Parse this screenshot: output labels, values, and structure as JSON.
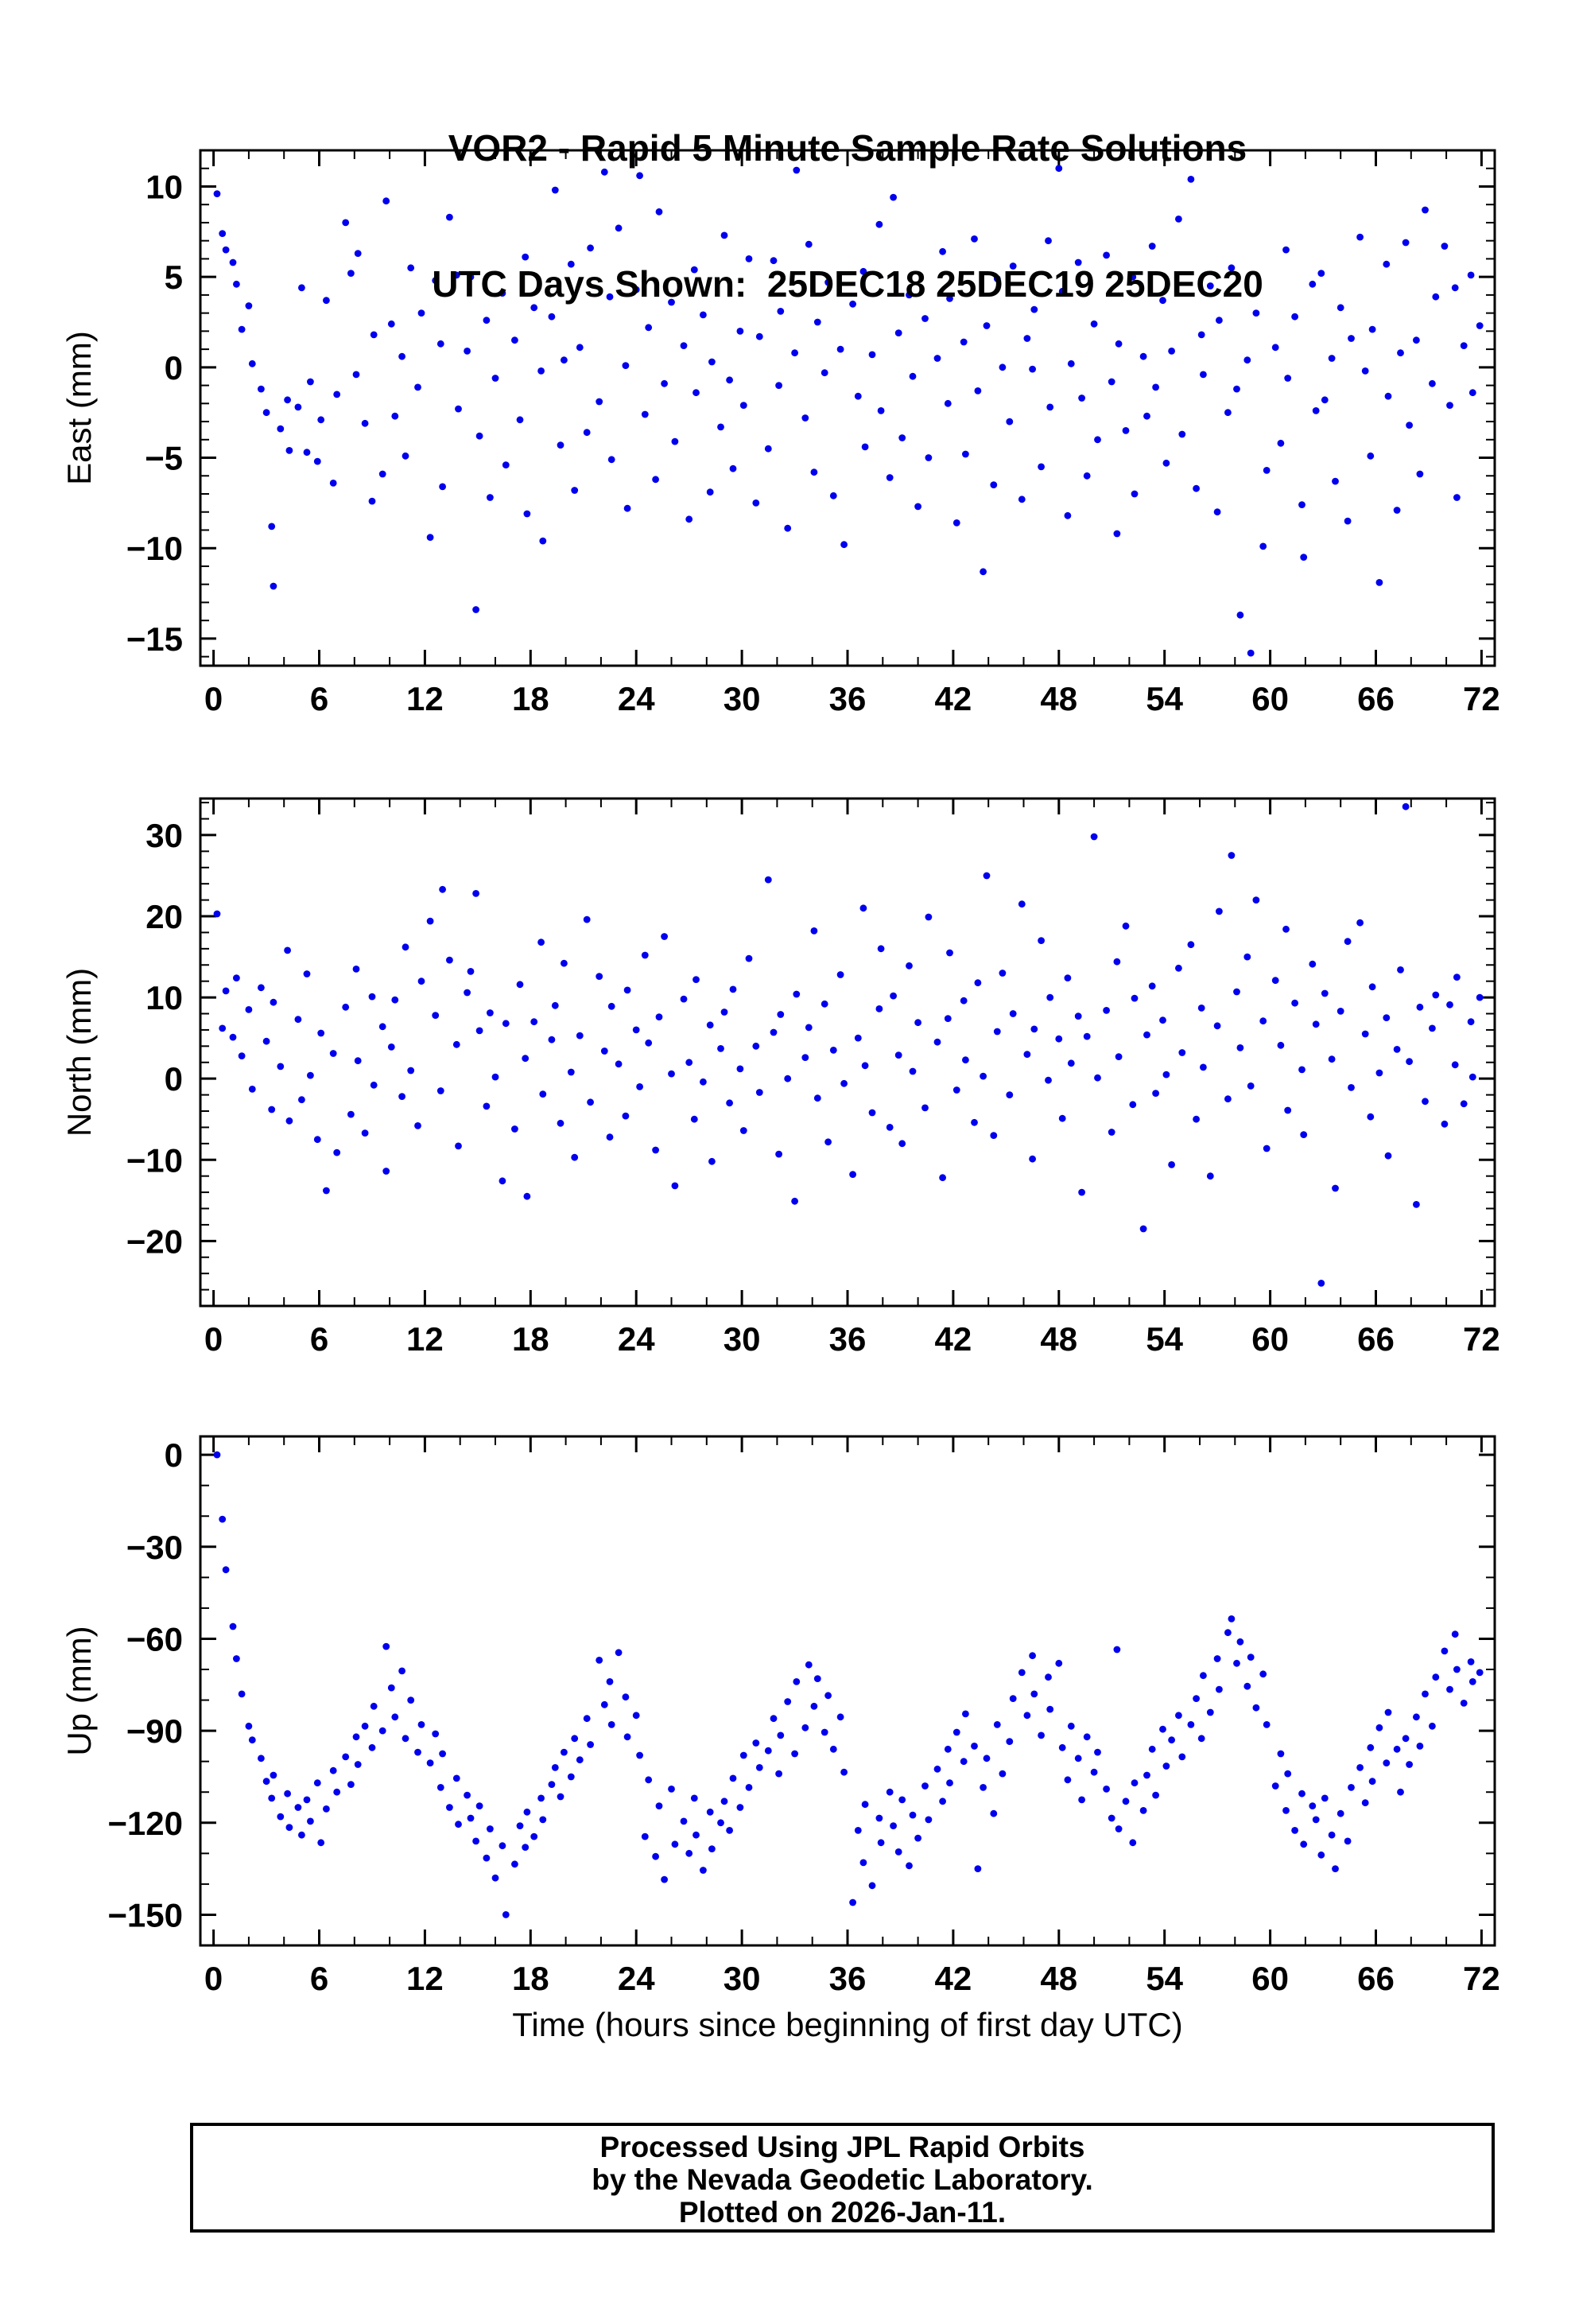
{
  "title": {
    "line1": "VOR2 - Rapid 5 Minute Sample Rate Solutions",
    "line2": "UTC Days Shown:  25DEC18 25DEC19 25DEC20"
  },
  "footer": {
    "line1": "Processed Using JPL Rapid Orbits",
    "line2": "by the Nevada Geodetic Laboratory.",
    "line3": "Plotted on 2026-Jan-11."
  },
  "chart_data": {
    "type": "scatter",
    "point_color": "#0000ee",
    "frame_color": "#000000",
    "grid": false,
    "legend": false,
    "x_axis": {
      "label": "Time (hours since beginning of first day UTC)",
      "range": [
        -0.75,
        72.75
      ],
      "major_ticks": [
        0,
        6,
        12,
        18,
        24,
        30,
        36,
        42,
        48,
        54,
        60,
        66,
        72
      ],
      "minor_step": 2
    },
    "x": [
      0.2,
      0.5,
      0.7,
      1.1,
      1.3,
      1.6,
      2.0,
      2.2,
      2.7,
      3.0,
      3.3,
      3.4,
      3.8,
      4.2,
      4.3,
      4.8,
      5.0,
      5.3,
      5.5,
      5.9,
      6.1,
      6.4,
      6.8,
      7.0,
      7.5,
      7.8,
      8.1,
      8.2,
      8.6,
      9.0,
      9.1,
      9.6,
      9.8,
      10.1,
      10.3,
      10.7,
      10.9,
      11.2,
      11.6,
      11.8,
      12.3,
      12.6,
      12.9,
      13.0,
      13.4,
      13.8,
      13.9,
      14.4,
      14.6,
      14.9,
      15.1,
      15.5,
      15.7,
      16.0,
      16.4,
      16.6,
      17.1,
      17.4,
      17.7,
      17.8,
      18.2,
      18.6,
      18.7,
      19.2,
      19.4,
      19.7,
      19.9,
      20.3,
      20.5,
      20.8,
      21.2,
      21.4,
      21.9,
      22.2,
      22.5,
      22.6,
      23.0,
      23.4,
      23.5,
      24.0,
      24.2,
      24.5,
      24.7,
      25.1,
      25.3,
      25.6,
      26.0,
      26.2,
      26.7,
      27.0,
      27.3,
      27.4,
      27.8,
      28.2,
      28.3,
      28.8,
      29.0,
      29.3,
      29.5,
      29.9,
      30.1,
      30.4,
      30.8,
      31.0,
      31.5,
      31.8,
      32.1,
      32.2,
      32.6,
      33.0,
      33.1,
      33.6,
      33.8,
      34.1,
      34.3,
      34.7,
      34.9,
      35.2,
      35.6,
      35.8,
      36.3,
      36.6,
      36.9,
      37.0,
      37.4,
      37.8,
      37.9,
      38.4,
      38.6,
      38.9,
      39.1,
      39.5,
      39.7,
      40.0,
      40.4,
      40.6,
      41.1,
      41.4,
      41.7,
      41.8,
      42.2,
      42.6,
      42.7,
      43.2,
      43.4,
      43.7,
      43.9,
      44.3,
      44.5,
      44.8,
      45.2,
      45.4,
      45.9,
      46.2,
      46.5,
      46.6,
      47.0,
      47.4,
      47.5,
      48.0,
      48.2,
      48.5,
      48.7,
      49.1,
      49.3,
      49.6,
      50.0,
      50.2,
      50.7,
      51.0,
      51.3,
      51.4,
      51.8,
      52.2,
      52.3,
      52.8,
      53.0,
      53.3,
      53.5,
      53.9,
      54.1,
      54.4,
      54.8,
      55.0,
      55.5,
      55.8,
      56.1,
      56.2,
      56.6,
      57.0,
      57.1,
      57.6,
      57.8,
      58.1,
      58.3,
      58.7,
      58.9,
      59.2,
      59.6,
      59.8,
      60.3,
      60.6,
      60.9,
      61.0,
      61.4,
      61.8,
      61.9,
      62.4,
      62.6,
      62.9,
      63.1,
      63.5,
      63.7,
      64.0,
      64.4,
      64.6,
      65.1,
      65.4,
      65.7,
      65.8,
      66.2,
      66.6,
      66.7,
      67.2,
      67.4,
      67.7,
      67.9,
      68.3,
      68.5,
      68.8,
      69.2,
      69.4,
      69.9,
      70.2,
      70.5,
      70.6,
      71.0,
      71.4,
      71.5,
      71.9
    ],
    "panels": [
      {
        "name": "East",
        "ylabel": "East (mm)",
        "ylim": [
          -16.5,
          12
        ],
        "major_ticks": [
          -15,
          -10,
          -5,
          0,
          5,
          10
        ],
        "minor_step": 1,
        "y": [
          9.6,
          7.4,
          6.5,
          5.8,
          4.6,
          2.1,
          3.4,
          0.2,
          -1.2,
          -2.5,
          -8.8,
          -12.1,
          -3.4,
          -1.8,
          -4.6,
          -2.2,
          4.4,
          -4.7,
          -0.8,
          -5.2,
          -2.9,
          3.7,
          -6.4,
          -1.5,
          8.0,
          5.2,
          -0.4,
          6.3,
          -3.1,
          -7.4,
          1.8,
          -5.9,
          9.2,
          2.4,
          -2.7,
          0.6,
          -4.9,
          5.5,
          -1.1,
          3.0,
          -9.4,
          4.8,
          1.3,
          -6.6,
          8.3,
          5.1,
          -2.3,
          0.9,
          5.0,
          -13.4,
          -3.8,
          2.6,
          -7.2,
          -0.6,
          4.1,
          -5.4,
          1.5,
          -2.9,
          6.1,
          -8.1,
          3.3,
          -0.2,
          -9.6,
          2.8,
          9.8,
          -4.3,
          0.4,
          5.7,
          -6.8,
          1.1,
          -3.6,
          6.6,
          -1.9,
          10.8,
          3.9,
          -5.1,
          7.7,
          0.1,
          -7.8,
          4.3,
          10.6,
          -2.6,
          2.2,
          -6.2,
          8.6,
          -0.9,
          3.6,
          -4.1,
          1.2,
          -8.4,
          5.4,
          -1.4,
          2.9,
          -6.9,
          0.3,
          -3.3,
          7.3,
          -0.7,
          -5.6,
          2.0,
          -2.1,
          6.0,
          -7.5,
          1.7,
          -4.5,
          5.9,
          -1.0,
          3.1,
          -8.9,
          0.8,
          10.9,
          -2.8,
          6.8,
          -5.8,
          2.5,
          -0.3,
          4.7,
          -7.1,
          1.0,
          -9.8,
          3.5,
          -1.6,
          5.3,
          -4.4,
          0.7,
          7.9,
          -2.4,
          -6.1,
          9.4,
          1.9,
          -3.9,
          4.0,
          -0.5,
          -7.7,
          2.7,
          -5.0,
          0.5,
          6.4,
          -2.0,
          3.8,
          -8.6,
          1.4,
          -4.8,
          7.1,
          -1.3,
          -11.3,
          2.3,
          -6.5,
          4.9,
          0.0,
          -3.0,
          5.6,
          -7.3,
          1.6,
          -0.1,
          3.2,
          -5.5,
          7.0,
          -2.2,
          11.0,
          4.2,
          -8.2,
          0.2,
          5.8,
          -1.7,
          -6.0,
          2.4,
          -4.0,
          6.2,
          -0.8,
          -9.2,
          1.3,
          -3.5,
          5.0,
          -7.0,
          0.6,
          -2.7,
          6.7,
          -1.1,
          3.7,
          -5.3,
          0.9,
          8.2,
          -3.7,
          10.4,
          -6.7,
          1.8,
          -0.4,
          4.5,
          -8.0,
          2.6,
          -2.5,
          5.5,
          -1.2,
          -13.7,
          0.4,
          -15.8,
          3.0,
          -9.9,
          -5.7,
          1.1,
          -4.2,
          6.5,
          -0.6,
          2.8,
          -7.6,
          -10.5,
          4.6,
          -2.4,
          5.2,
          -1.8,
          0.5,
          -6.3,
          3.3,
          -8.5,
          1.6,
          7.2,
          -0.2,
          -4.9,
          2.1,
          -11.9,
          5.7,
          -1.6,
          -7.9,
          0.8,
          6.9,
          -3.2,
          1.5,
          -5.9,
          8.7,
          -0.9,
          3.9,
          6.7,
          -2.1,
          4.4,
          -7.2,
          1.2,
          5.1,
          -1.4,
          2.3
        ]
      },
      {
        "name": "North",
        "ylabel": "North (mm)",
        "ylim": [
          -28,
          34.5
        ],
        "major_ticks": [
          -20,
          -10,
          0,
          10,
          20,
          30
        ],
        "minor_step": 2,
        "y": [
          20.3,
          6.2,
          10.8,
          5.1,
          12.4,
          2.8,
          8.5,
          -1.3,
          11.2,
          4.6,
          -3.8,
          9.4,
          1.5,
          15.8,
          -5.2,
          7.3,
          -2.6,
          12.9,
          0.4,
          -7.5,
          5.6,
          -13.8,
          3.1,
          -9.1,
          8.8,
          -4.4,
          13.5,
          2.2,
          -6.7,
          10.1,
          -0.8,
          6.4,
          -11.4,
          3.9,
          9.7,
          -2.2,
          16.2,
          1.0,
          -5.8,
          12.0,
          19.4,
          7.8,
          -1.5,
          23.3,
          14.6,
          4.2,
          -8.3,
          10.6,
          13.2,
          22.8,
          5.9,
          -3.4,
          8.1,
          0.2,
          -12.6,
          6.8,
          -6.2,
          11.6,
          2.5,
          -14.5,
          7.0,
          16.8,
          -1.9,
          4.8,
          9.0,
          -5.5,
          14.2,
          0.8,
          -9.7,
          5.3,
          19.6,
          -2.9,
          12.6,
          3.4,
          -7.2,
          8.9,
          1.8,
          -4.6,
          10.9,
          6.0,
          -1.0,
          15.2,
          4.4,
          -8.8,
          7.6,
          17.5,
          0.6,
          -13.2,
          9.8,
          2.0,
          -5.0,
          12.2,
          -0.4,
          6.6,
          -10.2,
          3.7,
          8.2,
          -3.0,
          11.0,
          1.2,
          -6.4,
          14.8,
          4.0,
          -1.7,
          24.5,
          5.7,
          -9.3,
          7.9,
          0.0,
          -15.1,
          10.4,
          2.6,
          6.3,
          18.2,
          -2.4,
          9.2,
          -7.8,
          3.5,
          12.8,
          -0.6,
          -11.8,
          5.0,
          21.0,
          1.6,
          -4.2,
          8.6,
          16.0,
          -6.0,
          10.2,
          2.9,
          -8.0,
          13.9,
          0.9,
          6.9,
          -3.6,
          19.9,
          4.5,
          -12.2,
          7.4,
          15.5,
          -1.4,
          9.6,
          2.3,
          -5.4,
          11.8,
          0.3,
          25.0,
          -7.0,
          5.8,
          13.0,
          -2.0,
          8.0,
          21.5,
          3.0,
          -9.9,
          6.1,
          17.0,
          -0.2,
          10.0,
          4.9,
          -4.9,
          12.4,
          1.9,
          7.7,
          -14.0,
          5.2,
          29.8,
          0.1,
          8.4,
          -6.6,
          14.4,
          2.7,
          18.8,
          -3.2,
          9.9,
          -18.5,
          5.4,
          11.4,
          -1.8,
          7.2,
          0.5,
          -10.6,
          13.6,
          3.2,
          16.5,
          -5.0,
          8.7,
          1.4,
          -12.0,
          6.5,
          20.6,
          -2.5,
          27.5,
          10.7,
          3.8,
          15.0,
          -0.9,
          22.0,
          7.1,
          -8.6,
          12.1,
          4.1,
          18.4,
          -3.9,
          9.3,
          1.1,
          -6.9,
          14.1,
          6.7,
          -25.2,
          10.5,
          2.4,
          -13.5,
          8.3,
          16.9,
          -1.1,
          19.2,
          5.5,
          -4.7,
          11.3,
          0.7,
          7.5,
          -9.5,
          3.6,
          13.4,
          33.5,
          2.1,
          -15.5,
          8.8,
          -2.8,
          6.2,
          10.3,
          -5.6,
          9.1,
          1.7,
          12.5,
          -3.1,
          7.0,
          0.2,
          10.0
        ]
      },
      {
        "name": "Up",
        "ylabel": "Up (mm)",
        "ylim": [
          -160,
          6
        ],
        "major_ticks": [
          -150,
          -120,
          -90,
          -60,
          -30,
          0
        ],
        "minor_step": 10,
        "y": [
          0.0,
          -21.0,
          -37.5,
          -56.0,
          -66.5,
          -78.0,
          -88.5,
          -93.0,
          -99.0,
          -106.5,
          -112.0,
          -104.5,
          -118.0,
          -110.5,
          -121.5,
          -115.0,
          -124.0,
          -112.5,
          -119.5,
          -107.0,
          -126.5,
          -115.5,
          -103.0,
          -110.0,
          -98.5,
          -107.5,
          -92.0,
          -101.0,
          -88.5,
          -95.5,
          -82.0,
          -90.0,
          -62.5,
          -76.0,
          -85.5,
          -70.5,
          -92.5,
          -80.0,
          -97.0,
          -88.0,
          -100.5,
          -91.0,
          -108.5,
          -97.5,
          -115.0,
          -105.5,
          -120.5,
          -111.0,
          -118.5,
          -126.0,
          -114.5,
          -131.5,
          -122.0,
          -138.0,
          -127.5,
          -150.0,
          -133.5,
          -121.0,
          -128.0,
          -116.5,
          -124.5,
          -112.0,
          -119.0,
          -107.5,
          -102.0,
          -111.5,
          -97.0,
          -105.0,
          -92.5,
          -99.5,
          -86.0,
          -94.5,
          -67.0,
          -81.5,
          -74.0,
          -88.0,
          -64.5,
          -79.0,
          -92.0,
          -85.0,
          -98.0,
          -124.5,
          -106.0,
          -131.0,
          -114.5,
          -138.5,
          -109.0,
          -127.0,
          -119.5,
          -130.0,
          -112.0,
          -124.0,
          -135.5,
          -116.5,
          -128.5,
          -120.0,
          -113.0,
          -122.5,
          -105.5,
          -115.0,
          -98.0,
          -108.5,
          -94.0,
          -102.0,
          -96.5,
          -86.0,
          -104.0,
          -91.5,
          -80.5,
          -97.5,
          -74.0,
          -89.0,
          -68.5,
          -82.0,
          -73.0,
          -90.5,
          -78.5,
          -96.0,
          -85.5,
          -103.5,
          -146.0,
          -122.5,
          -133.0,
          -114.0,
          -140.5,
          -118.5,
          -126.5,
          -110.0,
          -121.0,
          -129.5,
          -112.5,
          -134.0,
          -117.5,
          -125.0,
          -108.0,
          -119.0,
          -102.5,
          -113.0,
          -96.0,
          -107.0,
          -90.5,
          -100.0,
          -84.5,
          -95.0,
          -135.0,
          -108.5,
          -99.0,
          -117.0,
          -88.0,
          -104.0,
          -93.5,
          -79.5,
          -71.0,
          -85.0,
          -65.5,
          -78.0,
          -91.5,
          -72.5,
          -83.0,
          -68.0,
          -95.5,
          -106.0,
          -88.5,
          -99.0,
          -112.5,
          -92.0,
          -103.5,
          -97.0,
          -109.0,
          -118.5,
          -63.5,
          -122.0,
          -113.0,
          -126.5,
          -107.0,
          -116.0,
          -104.5,
          -96.0,
          -111.0,
          -89.5,
          -101.5,
          -93.0,
          -85.0,
          -98.5,
          -88.0,
          -79.5,
          -92.5,
          -72.0,
          -84.0,
          -66.5,
          -76.5,
          -58.0,
          -53.5,
          -68.0,
          -61.0,
          -75.5,
          -66.0,
          -82.5,
          -71.5,
          -88.0,
          -108.0,
          -97.5,
          -116.0,
          -104.0,
          -122.5,
          -110.5,
          -127.0,
          -114.5,
          -119.0,
          -130.5,
          -112.0,
          -124.0,
          -135.0,
          -117.0,
          -126.0,
          -108.5,
          -102.0,
          -113.5,
          -95.5,
          -106.5,
          -89.0,
          -100.5,
          -84.0,
          -96.0,
          -110.0,
          -92.5,
          -101.0,
          -85.5,
          -95.0,
          -78.0,
          -88.5,
          -72.5,
          -64.0,
          -76.5,
          -58.5,
          -70.0,
          -81.0,
          -67.5,
          -74.0,
          -71.0
        ]
      }
    ]
  }
}
